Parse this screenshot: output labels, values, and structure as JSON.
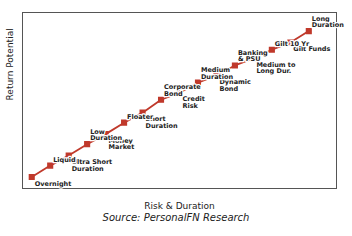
{
  "chart_data": {
    "type": "line",
    "x": [
      0,
      1,
      2,
      3,
      4,
      5,
      6,
      7,
      8,
      9,
      10,
      11,
      12,
      13,
      14,
      15
    ],
    "values": [
      0,
      0.8,
      1.5,
      2.3,
      3.0,
      3.8,
      4.5,
      5.4,
      5.9,
      6.6,
      7.1,
      7.8,
      8.3,
      8.9,
      9.4,
      10.2
    ],
    "color": "#c0392b",
    "marker": "square",
    "xlabel": "Risk & Duration",
    "ylabel": "Return Potential",
    "caption": "Source: PersonalFN Research",
    "xlim": [
      -0.5,
      16.5
    ],
    "ylim": [
      -0.8,
      11.5
    ],
    "xticks": [],
    "yticks": [],
    "tick_labels": false,
    "grid": false,
    "annotations": [
      {
        "x": 0,
        "y": 0,
        "text": "Overnight"
      },
      {
        "x": 1,
        "y": 0.8,
        "text": "Liquid"
      },
      {
        "x": 2,
        "y": 1.5,
        "text": "Ultra Short\nDuration"
      },
      {
        "x": 3,
        "y": 2.3,
        "text": "Low\nDuration"
      },
      {
        "x": 4,
        "y": 3.0,
        "text": "Money\nMarket"
      },
      {
        "x": 5,
        "y": 3.8,
        "text": "Floater"
      },
      {
        "x": 6,
        "y": 4.5,
        "text": "Short\nDuration"
      },
      {
        "x": 7,
        "y": 5.4,
        "text": "Corporate\nBond"
      },
      {
        "x": 8,
        "y": 5.9,
        "text": "Credit\nRisk"
      },
      {
        "x": 9,
        "y": 6.6,
        "text": "Medium\nDuration"
      },
      {
        "x": 10,
        "y": 7.1,
        "text": "Dynamic\nBond"
      },
      {
        "x": 11,
        "y": 7.8,
        "text": "Banking\n& PSU"
      },
      {
        "x": 12,
        "y": 8.3,
        "text": "Medium to\nLong Dur."
      },
      {
        "x": 13,
        "y": 8.9,
        "text": "Gilt 10 Yr"
      },
      {
        "x": 14,
        "y": 9.4,
        "text": "Gilt Funds"
      },
      {
        "x": 15,
        "y": 10.2,
        "text": "Long\nDuration"
      }
    ]
  }
}
